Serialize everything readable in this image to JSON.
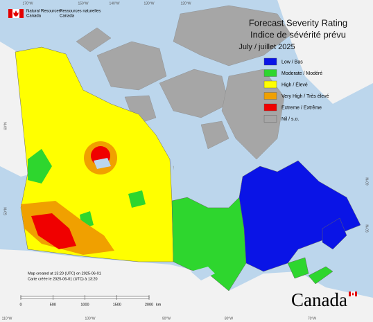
{
  "header": {
    "agency_en": [
      "Natural Resources",
      "Canada"
    ],
    "agency_fr": [
      "Ressources naturelles",
      "Canada"
    ]
  },
  "title": [
    "Forecast Severity Rating",
    "Indice de sévérité prévu",
    "July / juillet 2025"
  ],
  "legend": {
    "items": [
      {
        "label": "Low / Bas",
        "color": "#0a14e6"
      },
      {
        "label": "Moderate / Modéré",
        "color": "#2ed62e"
      },
      {
        "label": "High / Élevé",
        "color": "#ffff00"
      },
      {
        "label": "Very High / Très élevé",
        "color": "#f0a000"
      },
      {
        "label": "Extreme / Extrême",
        "color": "#f00000"
      },
      {
        "label": "Nil / s.o.",
        "color": "#a6a6a6"
      }
    ]
  },
  "note": [
    "Map created at 13:20 (UTC) on 2025-06-01",
    "Carte créée le 2025-06-01 (UTC) à 13:20"
  ],
  "scale": {
    "ticks": [
      0,
      500,
      1000,
      1500,
      2000
    ],
    "unit": "km"
  },
  "wordmark": "Canada",
  "graticule": [
    "170°W",
    "150°W",
    "140°W",
    "130°W",
    "120°W",
    "110°W",
    "100°W",
    "90°W",
    "80°W",
    "70°W",
    "60°N",
    "50°N",
    "60°N",
    "50°N"
  ]
}
